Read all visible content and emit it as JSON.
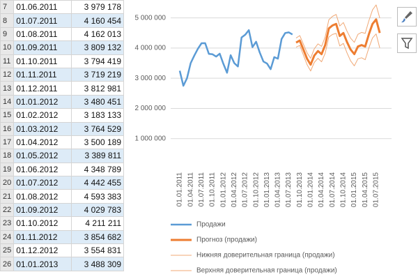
{
  "table": {
    "rows": [
      [
        "7",
        "01.06.2011",
        "3 979 178"
      ],
      [
        "8",
        "01.07.2011",
        "4 160 454"
      ],
      [
        "9",
        "01.08.2011",
        "4 162 013"
      ],
      [
        "10",
        "01.09.2011",
        "3 809 132"
      ],
      [
        "11",
        "01.10.2011",
        "3 794 419"
      ],
      [
        "12",
        "01.11.2011",
        "3 719 219"
      ],
      [
        "13",
        "01.12.2011",
        "3 812 981"
      ],
      [
        "14",
        "01.01.2012",
        "3 480 451"
      ],
      [
        "15",
        "01.02.2012",
        "3 183 133"
      ],
      [
        "16",
        "01.03.2012",
        "3 764 529"
      ],
      [
        "17",
        "01.04.2012",
        "3 500 189"
      ],
      [
        "18",
        "01.05.2012",
        "3 389 811"
      ],
      [
        "19",
        "01.06.2012",
        "4 348 789"
      ],
      [
        "20",
        "01.07.2012",
        "4 442 455"
      ],
      [
        "21",
        "01.08.2012",
        "4 593 383"
      ],
      [
        "22",
        "01.09.2012",
        "4 029 783"
      ],
      [
        "23",
        "01.10.2012",
        "4 211 211"
      ],
      [
        "24",
        "01.11.2012",
        "3 854 682"
      ],
      [
        "25",
        "01.12.2012",
        "3 554 831"
      ],
      [
        "26",
        "01.01.2013",
        "3 488 309"
      ]
    ]
  },
  "chart_data": {
    "type": "line",
    "grid": true,
    "categories": [
      "01.01.2011",
      null,
      null,
      "01.04.2011",
      null,
      null,
      "01.07.2011",
      null,
      null,
      "01.10.2011",
      null,
      null,
      "01.01.2012",
      null,
      null,
      "01.04.2012",
      null,
      null,
      "01.07.2012",
      null,
      null,
      "01.10.2012",
      null,
      null,
      "01.01.2013",
      null,
      null,
      "01.04.2013",
      null,
      null,
      "01.07.2013",
      null,
      null,
      "01.10.2013",
      null,
      null,
      "01.01.2014",
      null,
      null,
      "01.04.2014",
      null,
      null,
      "01.07.2014",
      null,
      null,
      "01.10.2014",
      null,
      null,
      "01.01.2015",
      null,
      null,
      "01.04.2015",
      null,
      null,
      "01.07.2015",
      null
    ],
    "ylim": [
      0,
      5500000
    ],
    "yticks": [
      {
        "value": 1000000,
        "label": "1 000 000"
      },
      {
        "value": 2000000,
        "label": "2 000 000"
      },
      {
        "value": 3000000,
        "label": "3 000 000"
      },
      {
        "value": 4000000,
        "label": "4 000 000"
      },
      {
        "value": 5000000,
        "label": "5 000 000"
      }
    ],
    "series": [
      {
        "name": "Продажи",
        "color": "#5b9bd5",
        "width": 2.5,
        "values": [
          3250000,
          2750000,
          3000000,
          3500000,
          3750000,
          3979178,
          4160454,
          4162013,
          3809132,
          3794419,
          3719219,
          3812981,
          3480451,
          3183133,
          3764529,
          3500189,
          3389811,
          4348789,
          4442455,
          4593383,
          4029783,
          4211211,
          3854682,
          3554831,
          3488309,
          3300000,
          3700000,
          3650000,
          4300000,
          4500000,
          4520000,
          4450000,
          null,
          null,
          null,
          null,
          null,
          null,
          null,
          null,
          null,
          null,
          null,
          null,
          null,
          null,
          null,
          null,
          null,
          null,
          null,
          null,
          null,
          null,
          null,
          null
        ]
      },
      {
        "name": "Прогноз (продажи)",
        "color": "#ed7d31",
        "width": 3,
        "values": [
          null,
          null,
          null,
          null,
          null,
          null,
          null,
          null,
          null,
          null,
          null,
          null,
          null,
          null,
          null,
          null,
          null,
          null,
          null,
          null,
          null,
          null,
          null,
          null,
          null,
          null,
          null,
          null,
          null,
          null,
          null,
          null,
          4180000,
          4250000,
          3950000,
          3650000,
          3450000,
          3750000,
          3900000,
          3800000,
          4100000,
          4650000,
          4750000,
          4800000,
          4400000,
          4500000,
          4200000,
          3950000,
          3800000,
          4050000,
          4100000,
          4050000,
          4450000,
          4800000,
          4950000,
          4500000
        ]
      },
      {
        "name": "Нижняя доверительная граница (продажи)",
        "color": "#f0a875",
        "width": 1,
        "values": [
          null,
          null,
          null,
          null,
          null,
          null,
          null,
          null,
          null,
          null,
          null,
          null,
          null,
          null,
          null,
          null,
          null,
          null,
          null,
          null,
          null,
          null,
          null,
          null,
          null,
          null,
          null,
          null,
          null,
          null,
          null,
          null,
          4030000,
          4085000,
          3770000,
          3455000,
          3240000,
          3525000,
          3660000,
          3545000,
          3830000,
          4365000,
          4450000,
          4485000,
          4070000,
          4155000,
          3840000,
          3575000,
          3410000,
          3645000,
          3680000,
          3615000,
          4000000,
          4335000,
          4470000,
          4005000
        ]
      },
      {
        "name": "Верхняя доверительная граница (продажи)",
        "color": "#f0a875",
        "width": 1,
        "values": [
          null,
          null,
          null,
          null,
          null,
          null,
          null,
          null,
          null,
          null,
          null,
          null,
          null,
          null,
          null,
          null,
          null,
          null,
          null,
          null,
          null,
          null,
          null,
          null,
          null,
          null,
          null,
          null,
          null,
          null,
          null,
          null,
          4330000,
          4415000,
          4130000,
          3845000,
          3660000,
          3975000,
          4140000,
          4055000,
          4370000,
          4935000,
          5050000,
          5115000,
          4730000,
          4845000,
          4560000,
          4325000,
          4190000,
          4455000,
          4520000,
          4485000,
          4900000,
          5265000,
          5430000,
          4995000
        ]
      }
    ]
  }
}
